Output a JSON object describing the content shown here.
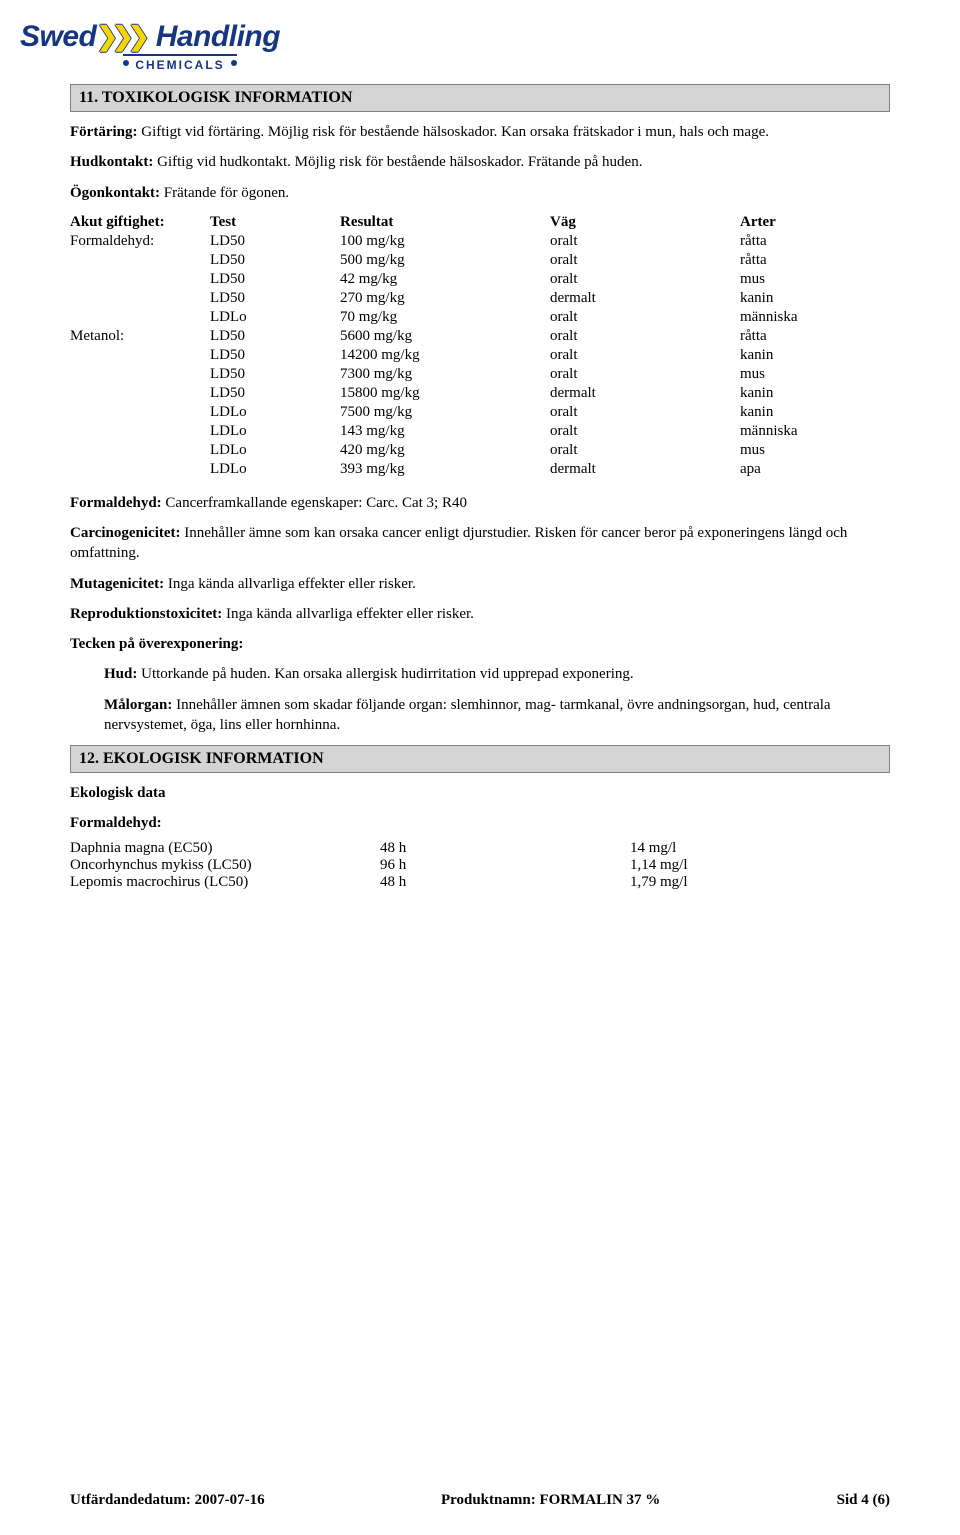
{
  "logo": {
    "word1": "Swed",
    "word2": "Handling",
    "sub": "CHEMICALS"
  },
  "section11": {
    "title": "11. TOXIKOLOGISK INFORMATION",
    "intake_label": "Förtäring:",
    "intake_text": " Giftigt vid förtäring. Möjlig risk för bestående hälsoskador. Kan orsaka frätskador i mun, hals och mage.",
    "skin_label": "Hudkontakt:",
    "skin_text": " Giftig vid hudkontakt. Möjlig risk för bestående hälsoskador. Frätande på huden.",
    "eye_label": "Ögonkontakt:",
    "eye_text": " Frätande för ögonen."
  },
  "tox": {
    "header": {
      "c1": "Akut giftighet:",
      "c2": "Test",
      "c3": "Resultat",
      "c4": "Väg",
      "c5": "Arter"
    },
    "rows": [
      {
        "c1": "Formaldehyd:",
        "c2": "LD50",
        "c3": "100 mg/kg",
        "c4": "oralt",
        "c5": "råtta"
      },
      {
        "c1": "",
        "c2": "LD50",
        "c3": "500 mg/kg",
        "c4": "oralt",
        "c5": "råtta"
      },
      {
        "c1": "",
        "c2": "LD50",
        "c3": "42 mg/kg",
        "c4": "oralt",
        "c5": "mus"
      },
      {
        "c1": "",
        "c2": "LD50",
        "c3": "270 mg/kg",
        "c4": "dermalt",
        "c5": "kanin"
      },
      {
        "c1": "",
        "c2": "LDLo",
        "c3": "70 mg/kg",
        "c4": "oralt",
        "c5": "människa"
      },
      {
        "c1": "Metanol:",
        "c2": "LD50",
        "c3": "5600 mg/kg",
        "c4": "oralt",
        "c5": "råtta"
      },
      {
        "c1": "",
        "c2": "LD50",
        "c3": "14200 mg/kg",
        "c4": "oralt",
        "c5": "kanin"
      },
      {
        "c1": "",
        "c2": "LD50",
        "c3": "7300 mg/kg",
        "c4": "oralt",
        "c5": "mus"
      },
      {
        "c1": "",
        "c2": "LD50",
        "c3": "15800 mg/kg",
        "c4": "dermalt",
        "c5": "kanin"
      },
      {
        "c1": "",
        "c2": "LDLo",
        "c3": "7500 mg/kg",
        "c4": "oralt",
        "c5": "kanin"
      },
      {
        "c1": "",
        "c2": "LDLo",
        "c3": "143 mg/kg",
        "c4": "oralt",
        "c5": "människa"
      },
      {
        "c1": "",
        "c2": "LDLo",
        "c3": "420 mg/kg",
        "c4": "oralt",
        "c5": "mus"
      },
      {
        "c1": "",
        "c2": "LDLo",
        "c3": "393 mg/kg",
        "c4": "dermalt",
        "c5": "apa"
      }
    ]
  },
  "lines": {
    "form_label": "Formaldehyd:",
    "form_text": " Cancerframkallande egenskaper: Carc. Cat 3; R40",
    "carc_label": "Carcinogenicitet:",
    "carc_text": " Innehåller ämne som kan orsaka cancer enligt djurstudier. Risken för cancer beror på exponeringens längd och omfattning.",
    "muta_label": "Mutagenicitet:",
    "muta_text": " Inga kända allvarliga effekter eller risker.",
    "repro_label": "Reproduktionstoxicitet:",
    "repro_text": " Inga kända allvarliga effekter eller risker.",
    "over_label": "Tecken på överexponering:",
    "hud_label": "Hud:",
    "hud_text": " Uttorkande på huden. Kan orsaka allergisk hudirritation vid upprepad exponering.",
    "mal_label": "Målorgan:",
    "mal_text": " Innehåller ämnen som skadar följande organ: slemhinnor, mag- tarmkanal, övre andningsorgan, hud, centrala nervsystemet, öga, lins eller hornhinna."
  },
  "section12": {
    "title": "12. EKOLOGISK INFORMATION",
    "sub1": "Ekologisk data",
    "sub2": "Formaldehyd:"
  },
  "eco": {
    "rows": [
      {
        "e1": "Daphnia magna (EC50)",
        "e2": "48 h",
        "e3": "14 mg/l"
      },
      {
        "e1": "Oncorhynchus mykiss (LC50)",
        "e2": "96 h",
        "e3": "1,14 mg/l"
      },
      {
        "e1": "Lepomis macrochirus (LC50)",
        "e2": "48 h",
        "e3": "1,79 mg/l"
      }
    ]
  },
  "footer": {
    "left": "Utfärdandedatum: 2007-07-16",
    "mid": "Produktnamn: FORMALIN 37 %",
    "right": "Sid 4 (6)"
  }
}
